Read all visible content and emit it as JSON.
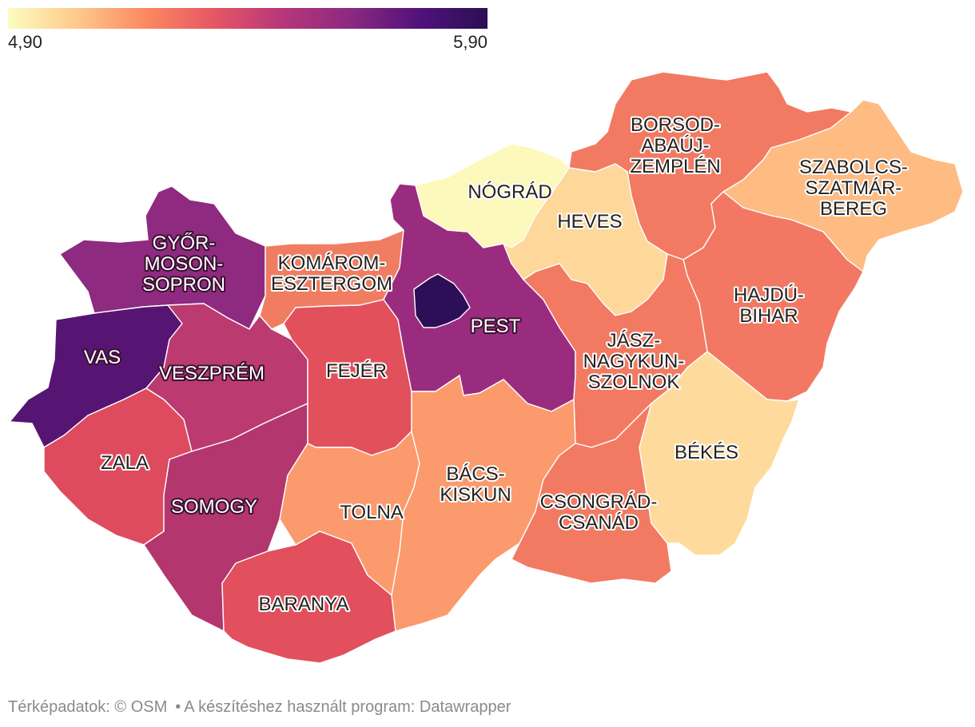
{
  "legend": {
    "min_label": "4,90",
    "max_label": "5,90",
    "min": 4.9,
    "max": 5.9,
    "gradient_colors": [
      "#fcfdbf",
      "#fec98d",
      "#fc8961",
      "#e65764",
      "#b73779",
      "#8c2981",
      "#51127c",
      "#2a0f54"
    ]
  },
  "counties": [
    {
      "key": "gyor",
      "lines": [
        "GYŐR-",
        "MOSON-",
        "SOPRON"
      ],
      "color": "#8e2a80"
    },
    {
      "key": "vas",
      "lines": [
        "VAS"
      ],
      "color": "#571573"
    },
    {
      "key": "zala",
      "lines": [
        "ZALA"
      ],
      "color": "#de4b5e"
    },
    {
      "key": "veszprem",
      "lines": [
        "VESZPRÉM"
      ],
      "color": "#bb3a70"
    },
    {
      "key": "somogy",
      "lines": [
        "SOMOGY"
      ],
      "color": "#b3366f"
    },
    {
      "key": "komarom",
      "lines": [
        "KOMÁROM-",
        "ESZTERGOM"
      ],
      "color": "#f07d62"
    },
    {
      "key": "fejer",
      "lines": [
        "FEJÉR"
      ],
      "color": "#e2505c"
    },
    {
      "key": "baranya",
      "lines": [
        "BARANYA"
      ],
      "color": "#e1505c"
    },
    {
      "key": "tolna",
      "lines": [
        "TOLNA"
      ],
      "color": "#fb9a6c"
    },
    {
      "key": "pest",
      "lines": [
        "PEST"
      ],
      "color": "#9a2c80"
    },
    {
      "key": "budapest",
      "lines": [],
      "color": "#2c0f56"
    },
    {
      "key": "nograd",
      "lines": [
        "NÓGRÁD"
      ],
      "color": "#fdf8bb"
    },
    {
      "key": "heves",
      "lines": [
        "HEVES"
      ],
      "color": "#fed79b"
    },
    {
      "key": "borsod",
      "lines": [
        "BORSOD-",
        "ABAÚJ-",
        "ZEMPLÉN"
      ],
      "color": "#f27a62"
    },
    {
      "key": "szabolcs",
      "lines": [
        "SZABOLCS-",
        "SZATMÁR-",
        "BEREG"
      ],
      "color": "#febb82"
    },
    {
      "key": "hajdu",
      "lines": [
        "HAJDÚ-",
        "BIHAR"
      ],
      "color": "#f27863"
    },
    {
      "key": "jasz",
      "lines": [
        "JÁSZ-",
        "NAGYKUN-",
        "SZOLNOK"
      ],
      "color": "#f27a62"
    },
    {
      "key": "bacs",
      "lines": [
        "BÁCS-",
        "KISKUN"
      ],
      "color": "#fb9a6c"
    },
    {
      "key": "csongrad",
      "lines": [
        "CSONGRÁD-",
        "CSANÁD"
      ],
      "color": "#f27a62"
    },
    {
      "key": "bekes",
      "lines": [
        "BÉKÉS"
      ],
      "color": "#fedb9d"
    }
  ],
  "footer": {
    "source": "Térképadatok: © OSM",
    "bullet": "•",
    "tool": "A készítéshez használt program: Datawrapper"
  }
}
